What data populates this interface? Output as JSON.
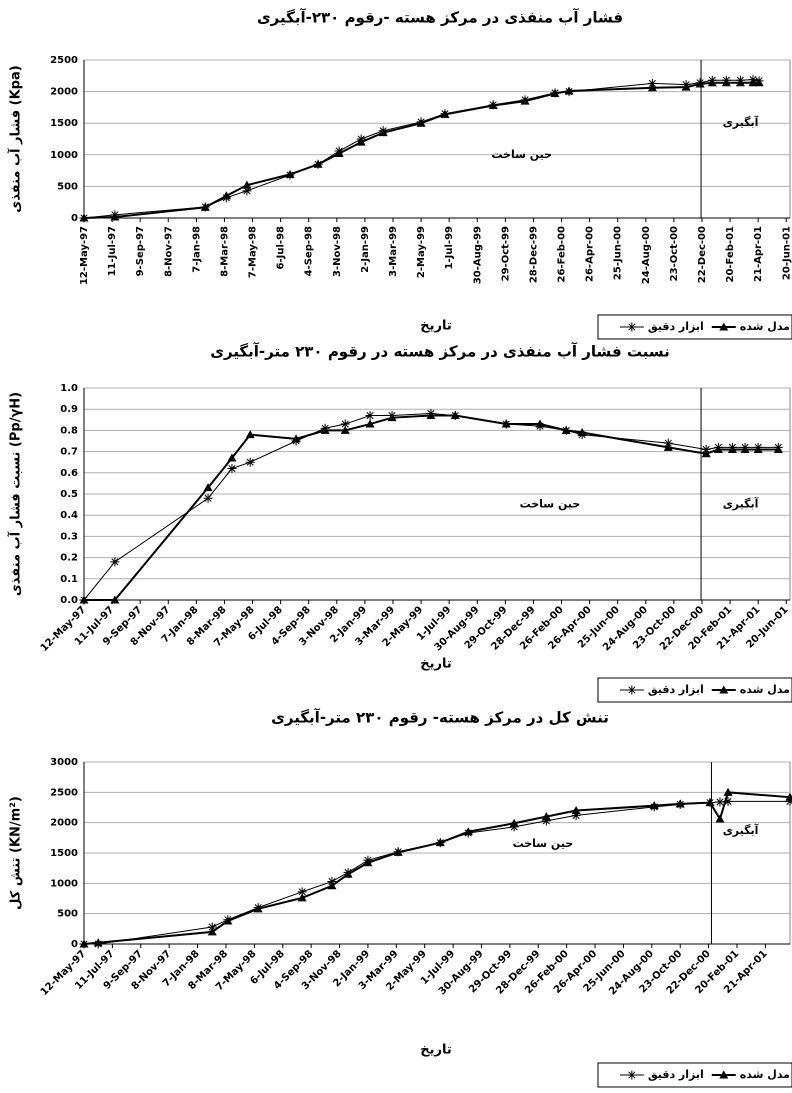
{
  "chart_data": [
    {
      "type": "line",
      "title": "فشار آب منفذی در مرکز هسته -رقوم ۲۳۰-آبگیری",
      "y_label": "فشار آب منفذی (Kpa)",
      "x_label": "تاریخ",
      "annotations": [
        "حین ساخت",
        "آبگیری"
      ],
      "divider_x": "2000-12-20",
      "x": [
        "1997-05-12",
        "1997-07-17",
        "1998-01-26",
        "1998-03-12",
        "1998-04-25",
        "1998-07-26",
        "1998-09-24",
        "1998-11-08",
        "1998-12-25",
        "1999-02-10",
        "1999-05-02",
        "1999-06-22",
        "1999-10-03",
        "1999-12-10",
        "2000-02-12",
        "2000-03-13",
        "2000-09-07",
        "2000-11-18",
        "2000-12-18",
        "2001-01-13",
        "2001-02-12",
        "2001-03-14",
        "2001-04-10",
        "2001-04-23"
      ],
      "series": [
        {
          "name": "ابزار دقیق",
          "color": "#000000",
          "marker": "asterisk",
          "values": [
            0,
            50,
            175,
            320,
            430,
            680,
            850,
            1060,
            1250,
            1380,
            1520,
            1650,
            1790,
            1870,
            1980,
            2000,
            2130,
            2110,
            2140,
            2180,
            2180,
            2180,
            2190,
            2170
          ]
        },
        {
          "name": "مدل شده",
          "color": "#000000",
          "marker": "triangle",
          "values": [
            0,
            15,
            170,
            350,
            520,
            690,
            850,
            1020,
            1200,
            1350,
            1500,
            1640,
            1780,
            1850,
            1970,
            2010,
            2060,
            2070,
            2120,
            2140,
            2140,
            2140,
            2140,
            2140
          ]
        }
      ],
      "xlim": [
        "1997-05-12",
        "2001-06-28"
      ],
      "xticks": [
        {
          "value": "1997-05-12",
          "label": "12-May-97"
        },
        {
          "value": "1997-07-11",
          "label": "11-Jul-97"
        },
        {
          "value": "1997-09-09",
          "label": "9-Sep-97"
        },
        {
          "value": "1997-11-08",
          "label": "8-Nov-97"
        },
        {
          "value": "1998-01-07",
          "label": "7-Jan-98"
        },
        {
          "value": "1998-03-08",
          "label": "8-Mar-98"
        },
        {
          "value": "1998-05-07",
          "label": "7-May-98"
        },
        {
          "value": "1998-07-06",
          "label": "6-Jul-98"
        },
        {
          "value": "1998-09-04",
          "label": "4-Sep-98"
        },
        {
          "value": "1998-11-03",
          "label": "3-Nov-98"
        },
        {
          "value": "1999-01-02",
          "label": "2-Jan-99"
        },
        {
          "value": "1999-03-03",
          "label": "3-Mar-99"
        },
        {
          "value": "1999-05-02",
          "label": "2-May-99"
        },
        {
          "value": "1999-07-01",
          "label": "1-Jul-99"
        },
        {
          "value": "1999-08-30",
          "label": "30-Aug-99"
        },
        {
          "value": "1999-10-29",
          "label": "29-Oct-99"
        },
        {
          "value": "1999-12-28",
          "label": "28-Dec-99"
        },
        {
          "value": "2000-02-26",
          "label": "26-Feb-00"
        },
        {
          "value": "2000-04-26",
          "label": "26-Apr-00"
        },
        {
          "value": "2000-06-25",
          "label": "25-Jun-00"
        },
        {
          "value": "2000-08-24",
          "label": "24-Aug-00"
        },
        {
          "value": "2000-10-23",
          "label": "23-Oct-00"
        },
        {
          "value": "2000-12-22",
          "label": "22-Dec-00"
        },
        {
          "value": "2001-02-20",
          "label": "20-Feb-01"
        },
        {
          "value": "2001-04-21",
          "label": "21-Apr-01"
        },
        {
          "value": "2001-06-20",
          "label": "20-Jun-01"
        }
      ],
      "ylim": [
        0,
        2500
      ],
      "yticks": [
        0,
        500,
        1000,
        1500,
        2000,
        2500
      ]
    },
    {
      "type": "line",
      "title": "نسبت فشار آب منفذی در مرکز هسته در رقوم ۲۳۰ متر-آبگیری",
      "y_label": "نسبت فشار آب منفذی (Pp/γH)",
      "x_label": "تاریخ",
      "annotations": [
        "حین ساخت",
        "آبگیری"
      ],
      "divider_x": "2000-12-20",
      "x": [
        "1997-05-12",
        "1997-07-17",
        "1998-02-01",
        "1998-03-24",
        "1998-05-02",
        "1998-08-08",
        "1998-10-09",
        "1998-11-21",
        "1999-01-13",
        "1999-03-01",
        "1999-05-23",
        "1999-07-14",
        "1999-10-31",
        "2000-01-11",
        "2000-03-07",
        "2000-04-10",
        "2000-10-11",
        "2000-12-31",
        "2001-01-26",
        "2001-02-25",
        "2001-03-24",
        "2001-04-21",
        "2001-06-03"
      ],
      "series": [
        {
          "name": "ابزار دقیق",
          "color": "#000000",
          "marker": "asterisk",
          "values": [
            0,
            0.18,
            0.48,
            0.62,
            0.65,
            0.75,
            0.81,
            0.83,
            0.87,
            0.87,
            0.88,
            0.87,
            0.83,
            0.82,
            0.8,
            0.78,
            0.74,
            0.71,
            0.72,
            0.72,
            0.72,
            0.72,
            0.72
          ]
        },
        {
          "name": "مدل شده",
          "color": "#000000",
          "marker": "triangle",
          "values": [
            0,
            0,
            0.53,
            0.67,
            0.78,
            0.76,
            0.8,
            0.8,
            0.83,
            0.86,
            0.87,
            0.87,
            0.83,
            0.83,
            0.8,
            0.79,
            0.72,
            0.69,
            0.71,
            0.71,
            0.71,
            0.71,
            0.71
          ]
        }
      ],
      "xlim": [
        "1997-05-12",
        "2001-06-28"
      ],
      "xticks": [
        {
          "value": "1997-05-12",
          "label": "12-May-97"
        },
        {
          "value": "1997-07-11",
          "label": "11-Jul-97"
        },
        {
          "value": "1997-09-09",
          "label": "9-Sep-97"
        },
        {
          "value": "1997-11-08",
          "label": "8-Nov-97"
        },
        {
          "value": "1998-01-07",
          "label": "7-Jan-98"
        },
        {
          "value": "1998-03-08",
          "label": "8-Mar-98"
        },
        {
          "value": "1998-05-07",
          "label": "7-May-98"
        },
        {
          "value": "1998-07-06",
          "label": "6-Jul-98"
        },
        {
          "value": "1998-09-04",
          "label": "4-Sep-98"
        },
        {
          "value": "1998-11-03",
          "label": "3-Nov-98"
        },
        {
          "value": "1999-01-02",
          "label": "2-Jan-99"
        },
        {
          "value": "1999-03-03",
          "label": "3-Mar-99"
        },
        {
          "value": "1999-05-02",
          "label": "2-May-99"
        },
        {
          "value": "1999-07-01",
          "label": "1-Jul-99"
        },
        {
          "value": "1999-08-30",
          "label": "30-Aug-99"
        },
        {
          "value": "1999-10-29",
          "label": "29-Oct-99"
        },
        {
          "value": "1999-12-28",
          "label": "28-Dec-99"
        },
        {
          "value": "2000-02-26",
          "label": "26-Feb-00"
        },
        {
          "value": "2000-04-26",
          "label": "26-Apr-00"
        },
        {
          "value": "2000-06-25",
          "label": "25-Jun-00"
        },
        {
          "value": "2000-08-24",
          "label": "24-Aug-00"
        },
        {
          "value": "2000-10-23",
          "label": "23-Oct-00"
        },
        {
          "value": "2000-12-22",
          "label": "22-Dec-00"
        },
        {
          "value": "2001-02-20",
          "label": "20-Feb-01"
        },
        {
          "value": "2001-04-21",
          "label": "21-Apr-01"
        },
        {
          "value": "2001-06-20",
          "label": "20-Jun-01"
        }
      ],
      "ylim": [
        0,
        1
      ],
      "yticks": [
        {
          "value": 0,
          "label": "0.0"
        },
        0.1,
        0.2,
        0.3,
        0.4,
        0.5,
        0.6,
        0.7,
        0.8,
        0.9,
        {
          "value": 1,
          "label": "1.0"
        }
      ]
    },
    {
      "type": "line",
      "title": "تنش کل در مرکز هسته- رقوم ۲۳۰ متر-آبگیری",
      "y_label": "تنش کل (KN/m²)",
      "x_label": "تاریخ",
      "annotations": [
        "حین ساخت",
        "آبگیری"
      ],
      "divider_x": "2000-12-28",
      "x": [
        "1997-05-12",
        "1997-06-11",
        "1998-02-07",
        "1998-03-12",
        "1998-05-15",
        "1998-08-16",
        "1998-10-18",
        "1998-11-21",
        "1999-01-02",
        "1999-03-07",
        "1999-06-04",
        "1999-08-02",
        "1999-11-07",
        "2000-01-14",
        "2000-03-17",
        "2000-08-29",
        "2000-10-23",
        "2000-12-25",
        "2001-01-15",
        "2001-02-01",
        "2001-06-12"
      ],
      "series": [
        {
          "name": "ابزار دقیق",
          "color": "#000000",
          "marker": "asterisk",
          "values": [
            0,
            0,
            280,
            400,
            600,
            860,
            1030,
            1180,
            1380,
            1520,
            1670,
            1830,
            1930,
            2030,
            2120,
            2260,
            2300,
            2330,
            2340,
            2350,
            2350
          ]
        },
        {
          "name": "مدل شده",
          "color": "#000000",
          "marker": "triangle",
          "values": [
            0,
            20,
            200,
            380,
            580,
            760,
            960,
            1150,
            1340,
            1510,
            1670,
            1850,
            1990,
            2100,
            2200,
            2280,
            2310,
            2330,
            2060,
            2500,
            2420
          ]
        }
      ],
      "xlim": [
        "1997-05-12",
        "2001-06-12"
      ],
      "xticks": [
        {
          "value": "1997-05-12",
          "label": "12-May-97"
        },
        {
          "value": "1997-07-11",
          "label": "11-Jul-97"
        },
        {
          "value": "1997-09-09",
          "label": "9-Sep-97"
        },
        {
          "value": "1997-11-08",
          "label": "8-Nov-97"
        },
        {
          "value": "1998-01-07",
          "label": "7-Jan-98"
        },
        {
          "value": "1998-03-08",
          "label": "8-Mar-98"
        },
        {
          "value": "1998-05-07",
          "label": "7-May-98"
        },
        {
          "value": "1998-07-06",
          "label": "6-Jul-98"
        },
        {
          "value": "1998-09-04",
          "label": "4-Sep-98"
        },
        {
          "value": "1998-11-03",
          "label": "3-Nov-98"
        },
        {
          "value": "1999-01-02",
          "label": "2-Jan-99"
        },
        {
          "value": "1999-03-03",
          "label": "3-Mar-99"
        },
        {
          "value": "1999-05-02",
          "label": "2-May-99"
        },
        {
          "value": "1999-07-01",
          "label": "1-Jul-99"
        },
        {
          "value": "1999-08-30",
          "label": "30-Aug-99"
        },
        {
          "value": "1999-10-29",
          "label": "29-Oct-99"
        },
        {
          "value": "1999-12-28",
          "label": "28-Dec-99"
        },
        {
          "value": "2000-02-26",
          "label": "26-Feb-00"
        },
        {
          "value": "2000-04-26",
          "label": "26-Apr-00"
        },
        {
          "value": "2000-06-25",
          "label": "25-Jun-00"
        },
        {
          "value": "2000-08-24",
          "label": "24-Aug-00"
        },
        {
          "value": "2000-10-23",
          "label": "23-Oct-00"
        },
        {
          "value": "2000-12-22",
          "label": "22-Dec-00"
        },
        {
          "value": "2001-02-20",
          "label": "20-Feb-01"
        },
        {
          "value": "2001-04-21",
          "label": "21-Apr-01"
        }
      ],
      "ylim": [
        0,
        3000
      ],
      "yticks": [
        0,
        500,
        1000,
        1500,
        2000,
        2500,
        3000
      ]
    }
  ]
}
